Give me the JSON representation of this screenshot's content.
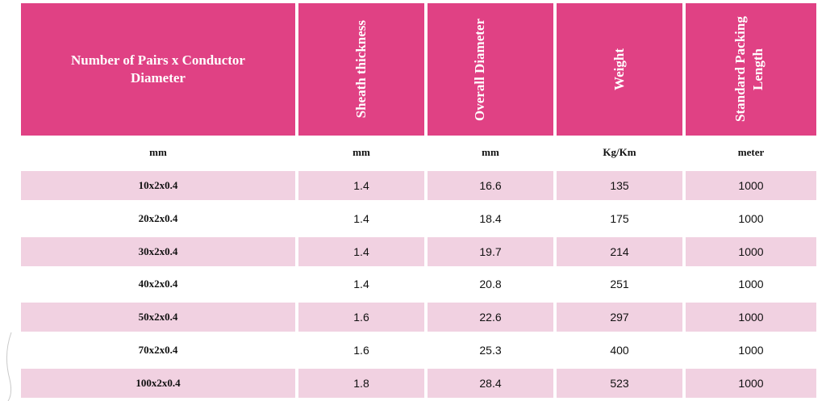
{
  "headers": [
    "Number of Pairs x Conductor Diameter",
    "Sheath thickness",
    "Overall Diameter",
    "Weight",
    "Standard Packing Length"
  ],
  "units": [
    "mm",
    "mm",
    "mm",
    "Kg/Km",
    "meter"
  ],
  "rows": [
    [
      "10x2x0.4",
      "1.4",
      "16.6",
      "135",
      "1000"
    ],
    [
      "20x2x0.4",
      "1.4",
      "18.4",
      "175",
      "1000"
    ],
    [
      "30x2x0.4",
      "1.4",
      "19.7",
      "214",
      "1000"
    ],
    [
      "40x2x0.4",
      "1.4",
      "20.8",
      "251",
      "1000"
    ],
    [
      "50x2x0.4",
      "1.6",
      "22.6",
      "297",
      "1000"
    ],
    [
      "70x2x0.4",
      "1.6",
      "25.3",
      "400",
      "1000"
    ],
    [
      "100x2x0.4",
      "1.8",
      "28.4",
      "523",
      "1000"
    ]
  ],
  "colors": {
    "header_bg": "#e04184",
    "row_stripe": "#f1d1e1"
  }
}
